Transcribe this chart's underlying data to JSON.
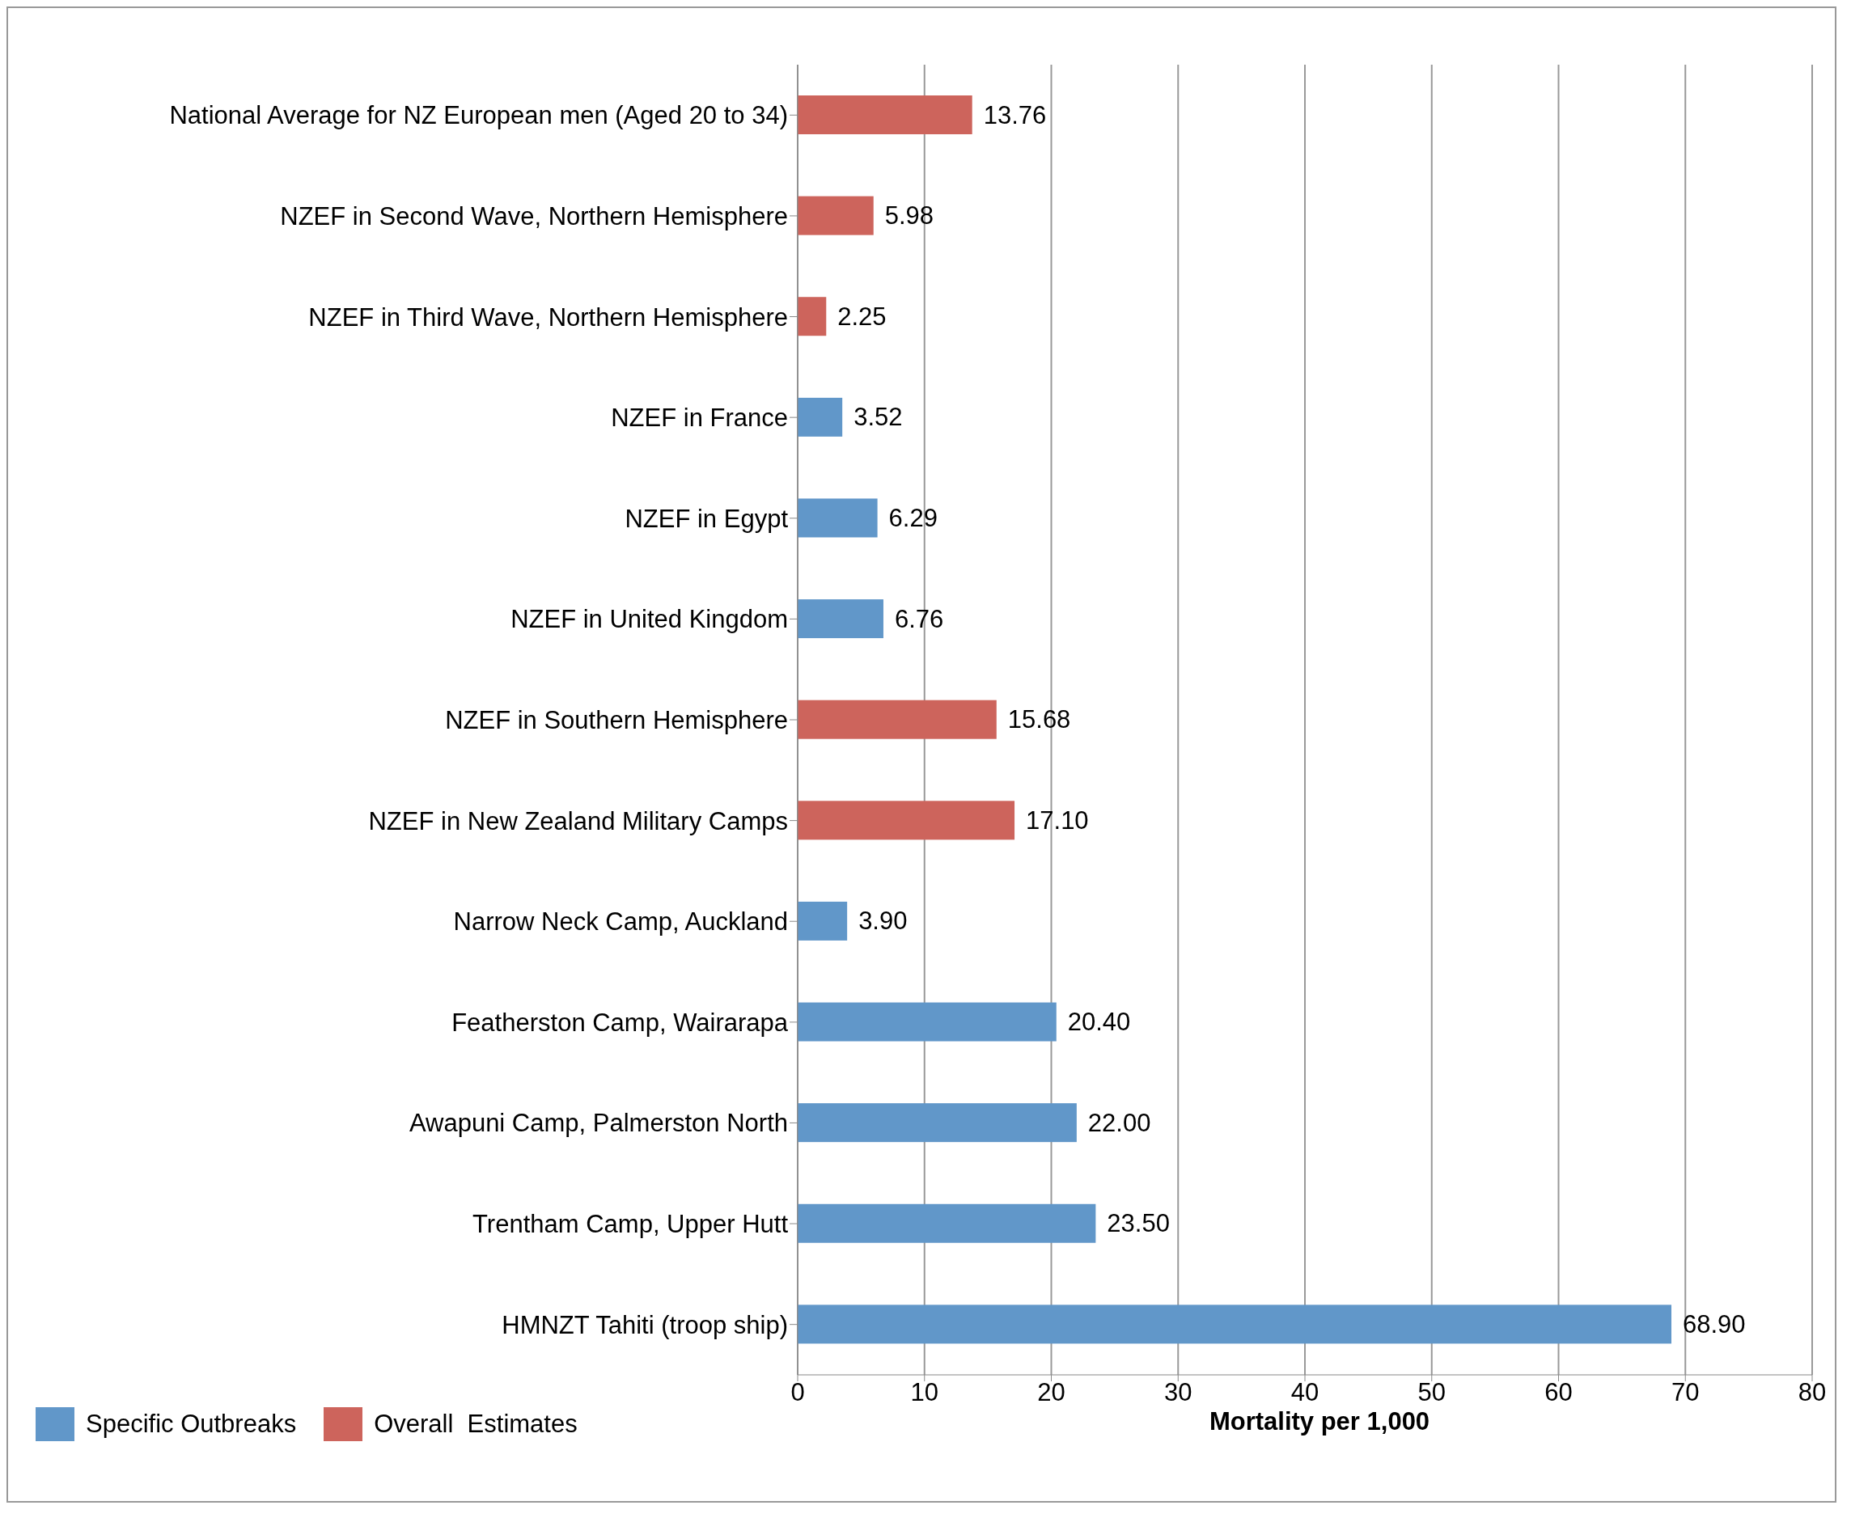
{
  "chart_data": {
    "type": "bar",
    "orientation": "horizontal",
    "stacked": true,
    "categories": [
      "National Average for NZ European men (Aged 20 to 34)",
      "NZEF in Second Wave, Northern Hemisphere",
      "NZEF in Third Wave, Northern Hemisphere",
      "NZEF in France",
      "NZEF in Egypt",
      "NZEF in United Kingdom",
      "NZEF in Southern Hemisphere",
      "NZEF in New Zealand Military Camps",
      "Narrow Neck Camp, Auckland",
      "Featherston Camp, Wairarapa",
      "Awapuni Camp, Palmerston North",
      "Trentham Camp, Upper Hutt",
      "HMNZT Tahiti (troop ship)"
    ],
    "series": [
      {
        "name": "Specific Outbreaks",
        "color": "#6197c9",
        "values": [
          null,
          null,
          null,
          3.52,
          6.29,
          6.76,
          null,
          null,
          3.9,
          20.4,
          22,
          23.5,
          68.9
        ],
        "value_labels": [
          null,
          null,
          null,
          "3.52",
          "6.29",
          "6.76",
          null,
          null,
          "3.90",
          "20.40",
          "22.00",
          "23.50",
          "68.90"
        ]
      },
      {
        "name": "Overall  Estimates",
        "color": "#cd645c",
        "values": [
          13.76,
          5.98,
          2.25,
          null,
          null,
          null,
          15.68,
          17.1,
          null,
          null,
          null,
          null,
          null
        ],
        "value_labels": [
          "13.76",
          "5.98",
          "2.25",
          null,
          null,
          null,
          "15.68",
          "17.10",
          null,
          null,
          null,
          null,
          null
        ]
      }
    ],
    "xlabel": "Mortality per 1,000",
    "xlim": [
      0,
      80
    ],
    "xticks": [
      0,
      10,
      20,
      30,
      40,
      50,
      60,
      70,
      80
    ],
    "grid": "x",
    "legend": "bottom left"
  }
}
